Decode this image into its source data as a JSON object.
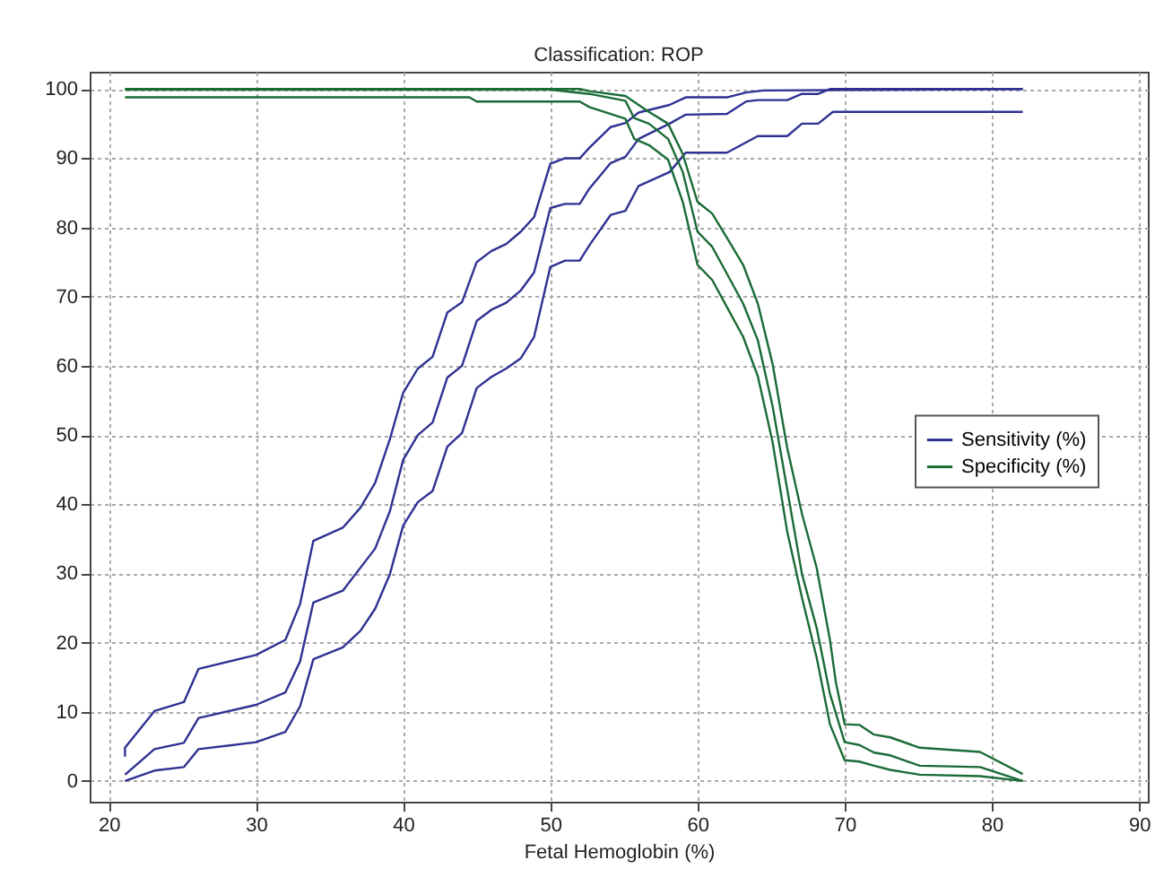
{
  "chart_data": {
    "type": "line",
    "title": "Classification: ROP",
    "xlabel": "Fetal Hemoglobin (%)",
    "xlim": [
      18.7,
      90.6
    ],
    "xticks": [
      20,
      30,
      40,
      50,
      60,
      70,
      80,
      90
    ],
    "ylim": [
      -3,
      102.5
    ],
    "yticks": [
      0,
      10,
      20,
      30,
      40,
      50,
      60,
      70,
      80,
      90,
      100
    ],
    "grid": true,
    "legend": "right",
    "marker": "none",
    "line_style": "solid",
    "series": [
      {
        "name": "Sensitivity (%)",
        "color": "#2e3192",
        "x": [
          21.1,
          23.1,
          25.1,
          26.1,
          30,
          32,
          33,
          33.9,
          35.9,
          38.1,
          39.1,
          40,
          41,
          42,
          43,
          44,
          45,
          46,
          47,
          48,
          48.9,
          50,
          51,
          52,
          52.65,
          54.1,
          55.1,
          56,
          58.1,
          59.2,
          62,
          63.3,
          64.1,
          66.1,
          67.1,
          68.2,
          69,
          82.1
        ],
        "values": [
          0.9,
          4.6,
          5.5,
          9.1,
          11,
          12.8,
          17.3,
          25.8,
          27.5,
          33.6,
          39,
          46.4,
          50,
          51.8,
          58.3,
          60,
          66.5,
          68.1,
          69.1,
          70.9,
          73.5,
          82.8,
          83.4,
          83.4,
          85.6,
          89.3,
          90.2,
          92.8,
          95,
          96.3,
          96.4,
          98.2,
          98.4,
          98.4,
          99.3,
          99.3,
          100,
          100
        ]
      },
      {
        "color": "#2e3192",
        "x": [
          21.1,
          21.1,
          23.1,
          25.1,
          26.1,
          30,
          32,
          33,
          33.9,
          35.9,
          37.1,
          38.1,
          39.1,
          40,
          41,
          42,
          43,
          44,
          45,
          46,
          47,
          48,
          48.9,
          50,
          51,
          52,
          52.65,
          54.1,
          55.1,
          56,
          58.1,
          59.2,
          62,
          63.3,
          64.5,
          82.1
        ],
        "values": [
          3.5,
          4.8,
          10.1,
          11.4,
          16.2,
          18.2,
          20.4,
          25.6,
          34.7,
          36.6,
          39.5,
          43.1,
          49.4,
          56.1,
          59.6,
          61.3,
          67.7,
          69.2,
          75,
          76.6,
          77.6,
          79.4,
          81.5,
          89.2,
          90,
          90,
          91.5,
          94.5,
          95.1,
          96.6,
          97.7,
          98.8,
          98.8,
          99.5,
          99.8,
          100
        ]
      },
      {
        "color": "#2e3192",
        "x": [
          21.1,
          23.1,
          25.1,
          26.1,
          30,
          32,
          33,
          33.9,
          35.9,
          37.1,
          38.1,
          39.1,
          40,
          41,
          42,
          43,
          44,
          45,
          46,
          47,
          48,
          48.9,
          50,
          51,
          52,
          52.65,
          54.1,
          55.1,
          56,
          58.1,
          59.2,
          62,
          64.1,
          66.1,
          67.1,
          68.2,
          69.2,
          82.1
        ],
        "values": [
          0,
          1.5,
          2,
          4.6,
          5.6,
          7.1,
          10.8,
          17.6,
          19.3,
          21.7,
          24.9,
          29.9,
          36.9,
          40.3,
          41.9,
          48.3,
          50.3,
          56.8,
          58.4,
          59.6,
          61.1,
          64.2,
          74.3,
          75.2,
          75.2,
          77.4,
          81.8,
          82.4,
          86,
          88,
          90.8,
          90.8,
          93.2,
          93.2,
          95,
          95,
          96.7,
          96.7
        ]
      },
      {
        "name": "Specificity (%)",
        "color": "#1a6b36",
        "x": [
          21.1,
          50,
          52.65,
          55.1,
          55.7,
          56.7,
          58.0,
          59.0,
          60,
          61.0,
          62.0,
          63.1,
          64.1,
          65.1,
          66.1,
          67.1,
          68.1,
          69.0,
          70,
          71.0,
          72.0,
          73.1,
          75.1,
          79.2,
          82.1
        ],
        "values": [
          99.9,
          99.9,
          99.3,
          98.3,
          95.8,
          95.0,
          92.8,
          88.0,
          79.4,
          77.2,
          73.3,
          69.0,
          63.7,
          54.2,
          42.1,
          29.9,
          22.1,
          12.6,
          5.6,
          5.2,
          4.1,
          3.7,
          2.2,
          2.0,
          0
        ]
      },
      {
        "color": "#1a6b36",
        "x": [
          21.1,
          52,
          52.65,
          55.1,
          56.7,
          58.0,
          59.0,
          60,
          61.0,
          62.0,
          63.1,
          64.1,
          65.1,
          66.1,
          67.1,
          68.1,
          69.0,
          69.4,
          70,
          71.0,
          72.0,
          73.1,
          75.1,
          79.2,
          82.1
        ],
        "values": [
          100,
          100,
          99.7,
          99.0,
          96.7,
          95.0,
          90.6,
          83.7,
          82.0,
          78.5,
          74.6,
          69.0,
          60.3,
          48.1,
          38.6,
          30.8,
          20.4,
          14.3,
          8.2,
          8.1,
          6.7,
          6.3,
          4.8,
          4.2,
          1.0
        ]
      },
      {
        "color": "#1a6b36",
        "x": [
          21.1,
          44.5,
          45,
          52,
          52.65,
          55.1,
          55.7,
          56.7,
          58.0,
          59.0,
          60,
          61.0,
          62.0,
          63.1,
          64.1,
          65.1,
          66.1,
          67.1,
          68.1,
          69.0,
          70,
          71.0,
          72.0,
          73.1,
          75.1,
          79.2,
          82.1
        ],
        "values": [
          98.8,
          98.8,
          98.2,
          98.2,
          97.4,
          95.7,
          92.8,
          91.9,
          89.8,
          83.7,
          74.6,
          72.4,
          68.5,
          64.2,
          58.5,
          49.0,
          36.0,
          26.5,
          17.8,
          8.2,
          3.0,
          2.8,
          2.2,
          1.6,
          0.9,
          0.7,
          0
        ]
      }
    ]
  }
}
